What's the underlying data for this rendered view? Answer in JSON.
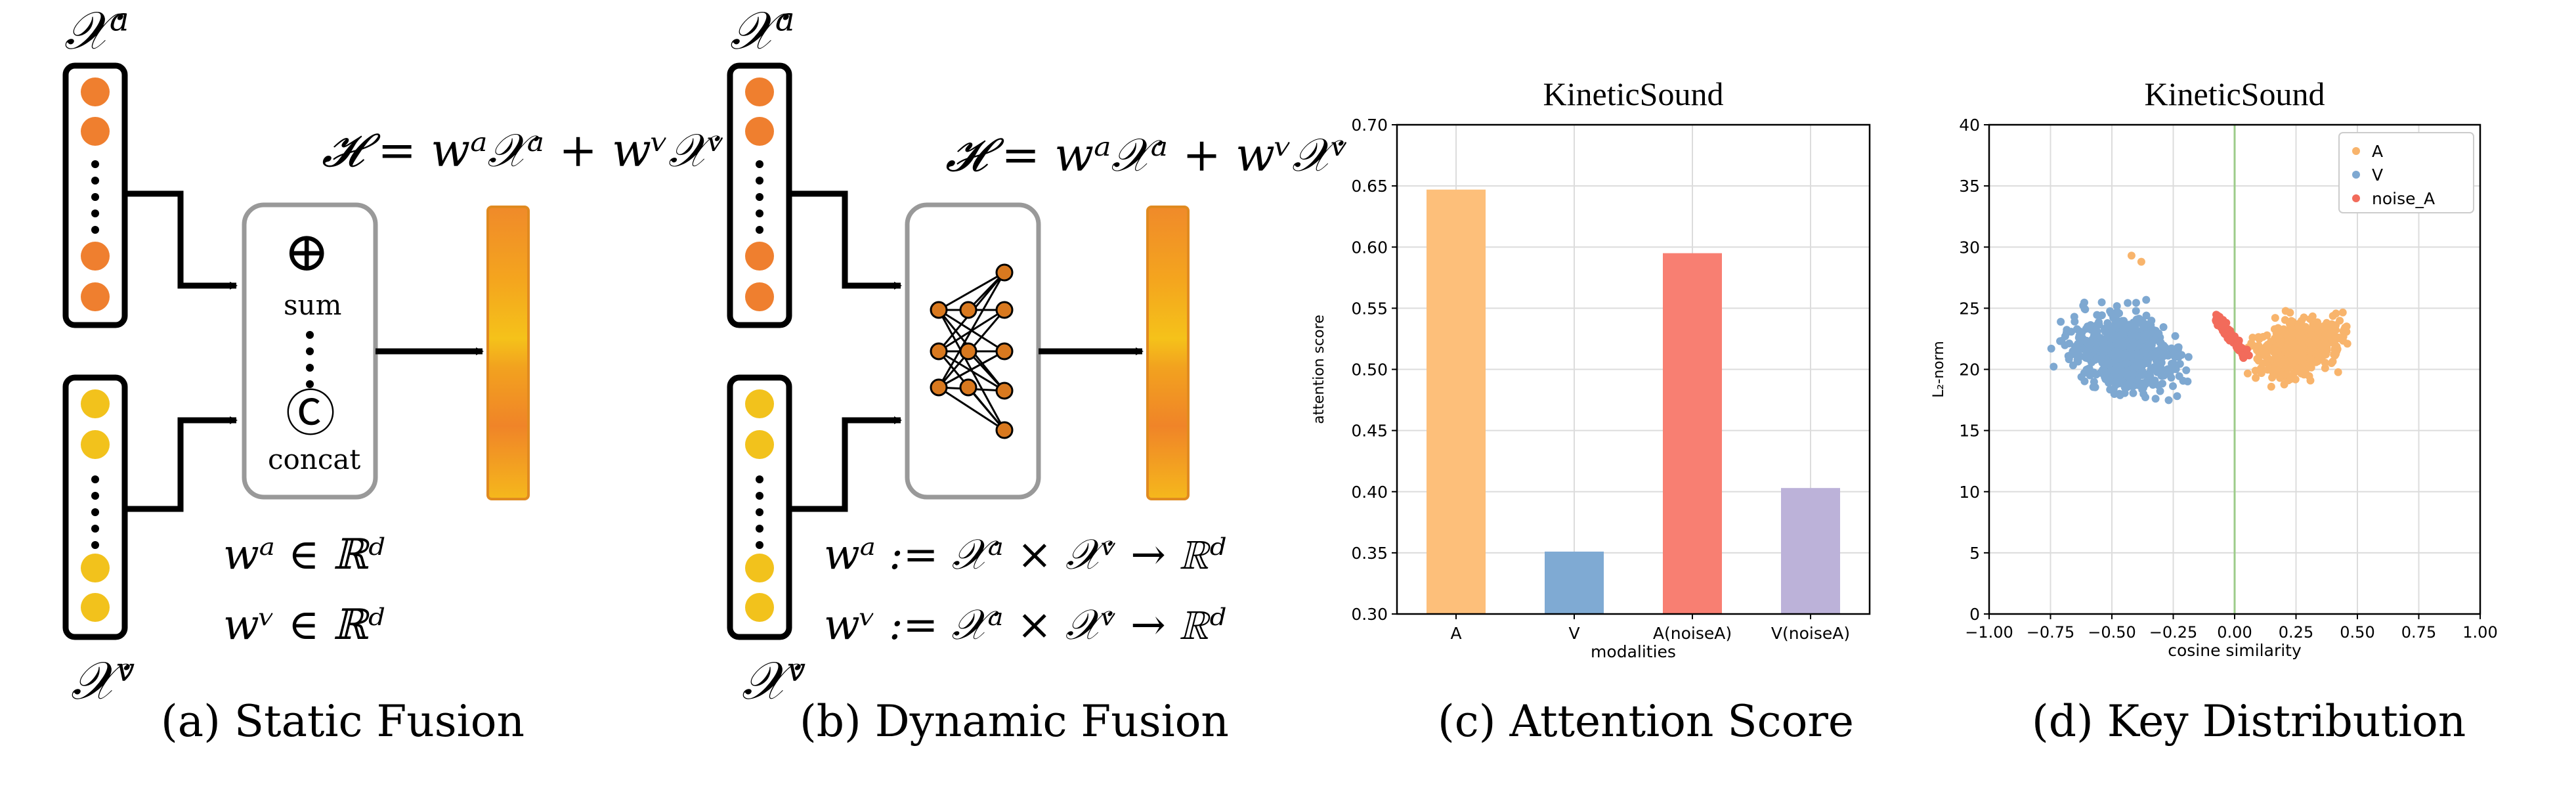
{
  "panels": {
    "a": {
      "caption": "(a) Static Fusion",
      "xa_label": "𝒳",
      "xa_sup": "a",
      "xv_label": "𝒳",
      "xv_sup": "v",
      "equation": "𝓗 = wᵃ𝒳ᵃ + wᵛ𝒳ᵛ",
      "sum_symbol": "⊕",
      "sum_label": "sum",
      "concat_symbol": "Ⓒ",
      "concat_label": "concat",
      "wa": "wᵃ ∈ ℝᵈ",
      "wv": "wᵛ ∈ ℝᵈ",
      "colors": {
        "audio": "#ef7f2f",
        "visual": "#f2c21c"
      }
    },
    "b": {
      "caption": "(b) Dynamic Fusion",
      "xa_label": "𝒳",
      "xa_sup": "a",
      "xv_label": "𝒳",
      "xv_sup": "v",
      "equation": "𝓗 = wᵃ𝒳ᵃ + wᵛ𝒳ᵛ",
      "wa": "wᵃ := 𝒳ᵃ × 𝒳ᵛ → ℝᵈ",
      "wv": "wᵛ := 𝒳ᵃ × 𝒳ᵛ → ℝᵈ"
    },
    "c": {
      "caption": "(c) Attention Score"
    },
    "d": {
      "caption": "(d) Key Distribution"
    }
  },
  "chart_data": [
    {
      "type": "bar",
      "title": "KineticSound",
      "xlabel": "modalities",
      "ylabel": "attention score",
      "categories": [
        "A",
        "V",
        "A(noiseA)",
        "V(noiseA)"
      ],
      "values": [
        0.647,
        0.351,
        0.595,
        0.403
      ],
      "colors": [
        "#fdbf7a",
        "#7faad3",
        "#f87f72",
        "#bcb2d9"
      ],
      "ylim": [
        0.3,
        0.7
      ],
      "yticks": [
        "0.30",
        "0.35",
        "0.40",
        "0.45",
        "0.50",
        "0.55",
        "0.60",
        "0.65",
        "0.70"
      ],
      "grid": true
    },
    {
      "type": "scatter",
      "title": "KineticSound",
      "xlabel": "cosine similarity",
      "ylabel": "L₂-norm",
      "xlim": [
        -1.0,
        1.0
      ],
      "ylim": [
        0,
        40
      ],
      "xticks": [
        "−1.00",
        "−0.75",
        "−0.50",
        "−0.25",
        "0.00",
        "0.25",
        "0.50",
        "0.75",
        "1.00"
      ],
      "yticks": [
        "0",
        "5",
        "10",
        "15",
        "20",
        "25",
        "30",
        "35",
        "40"
      ],
      "grid": true,
      "legend_position": "top-right",
      "series": [
        {
          "name": "A",
          "color": "#f8b46c",
          "x_range": [
            0.0,
            0.55
          ],
          "y_range": [
            18,
            26
          ],
          "outliers": [
            [
              -0.42,
              29.3
            ],
            [
              -0.38,
              28.8
            ]
          ]
        },
        {
          "name": "V",
          "color": "#7ea8d1",
          "x_range": [
            -0.75,
            -0.05
          ],
          "y_range": [
            16,
            28
          ]
        },
        {
          "name": "noise_A",
          "color": "#f26b5b",
          "x_range": [
            -0.08,
            0.05
          ],
          "y_range": [
            20.5,
            24.5
          ]
        }
      ]
    }
  ]
}
